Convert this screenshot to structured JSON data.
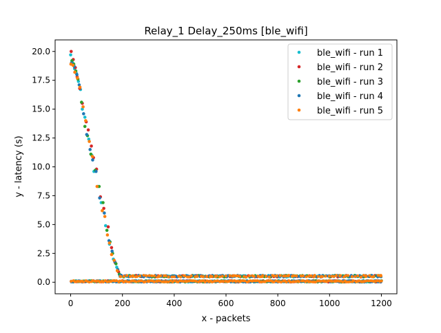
{
  "chart_data": {
    "type": "scatter",
    "title": "Relay_1 Delay_250ms [ble_wifi]",
    "xlabel": "x - packets",
    "ylabel": "y - latency (s)",
    "xlim": [
      -60,
      1260
    ],
    "ylim": [
      -1.0,
      21.0
    ],
    "xticks": [
      0,
      200,
      400,
      600,
      800,
      1000,
      1200
    ],
    "yticks": [
      0.0,
      2.5,
      5.0,
      7.5,
      10.0,
      12.5,
      15.0,
      17.5,
      20.0
    ],
    "xtick_labels": [
      "0",
      "200",
      "400",
      "600",
      "800",
      "1000",
      "1200"
    ],
    "ytick_labels": [
      "0.0",
      "2.5",
      "5.0",
      "7.5",
      "10.0",
      "12.5",
      "15.0",
      "17.5",
      "20.0"
    ],
    "grid": false,
    "legend_position": "top-right",
    "series": [
      {
        "name": "ble_wifi - run 1",
        "color": "#17becf",
        "points": [
          [
            0,
            19.7
          ],
          [
            8,
            19.0
          ],
          [
            15,
            18.5
          ],
          [
            22,
            18.1
          ],
          [
            30,
            17.4
          ],
          [
            38,
            16.7
          ],
          [
            45,
            15.0
          ],
          [
            55,
            14.3
          ],
          [
            70,
            12.4
          ],
          [
            82,
            11.0
          ],
          [
            90,
            9.6
          ],
          [
            105,
            8.3
          ],
          [
            118,
            6.9
          ],
          [
            135,
            4.9
          ],
          [
            150,
            3.3
          ],
          [
            165,
            2.0
          ],
          [
            178,
            1.3
          ],
          [
            190,
            0.6
          ],
          [
            250,
            0.55
          ],
          [
            350,
            0.5
          ],
          [
            450,
            0.55
          ],
          [
            550,
            0.5
          ],
          [
            650,
            0.5
          ],
          [
            750,
            0.55
          ],
          [
            850,
            0.5
          ],
          [
            950,
            0.5
          ],
          [
            1050,
            0.55
          ],
          [
            1150,
            0.5
          ],
          [
            1195,
            0.5
          ]
        ]
      },
      {
        "name": "ble_wifi - run 2",
        "color": "#d62728",
        "points": [
          [
            2,
            20.0
          ],
          [
            10,
            19.3
          ],
          [
            18,
            18.6
          ],
          [
            25,
            17.8
          ],
          [
            35,
            16.8
          ],
          [
            45,
            15.5
          ],
          [
            60,
            13.9
          ],
          [
            68,
            13.2
          ],
          [
            80,
            11.8
          ],
          [
            88,
            10.8
          ],
          [
            100,
            9.8
          ],
          [
            115,
            7.4
          ],
          [
            128,
            6.4
          ],
          [
            145,
            4.8
          ],
          [
            158,
            3.0
          ],
          [
            172,
            1.7
          ],
          [
            185,
            0.9
          ],
          [
            230,
            0.55
          ],
          [
            330,
            0.5
          ],
          [
            430,
            0.55
          ],
          [
            530,
            0.5
          ],
          [
            630,
            0.55
          ],
          [
            730,
            0.5
          ],
          [
            830,
            0.55
          ],
          [
            930,
            0.5
          ],
          [
            1030,
            0.55
          ],
          [
            1130,
            0.5
          ],
          [
            1190,
            0.55
          ]
        ]
      },
      {
        "name": "ble_wifi - run 3",
        "color": "#2ca02c",
        "points": [
          [
            5,
            19.2
          ],
          [
            12,
            18.9
          ],
          [
            20,
            18.3
          ],
          [
            28,
            17.6
          ],
          [
            42,
            15.6
          ],
          [
            55,
            13.5
          ],
          [
            65,
            12.7
          ],
          [
            78,
            11.1
          ],
          [
            95,
            9.7
          ],
          [
            110,
            8.3
          ],
          [
            125,
            6.9
          ],
          [
            140,
            4.5
          ],
          [
            152,
            3.5
          ],
          [
            162,
            2.5
          ],
          [
            175,
            1.6
          ],
          [
            188,
            0.7
          ],
          [
            270,
            0.55
          ],
          [
            370,
            0.5
          ],
          [
            470,
            0.55
          ],
          [
            570,
            0.5
          ],
          [
            670,
            0.55
          ],
          [
            770,
            0.5
          ],
          [
            870,
            0.55
          ],
          [
            970,
            0.5
          ],
          [
            1070,
            0.55
          ],
          [
            1170,
            0.5
          ]
        ]
      },
      {
        "name": "ble_wifi - run 4",
        "color": "#1f77b4",
        "points": [
          [
            3,
            19.0
          ],
          [
            14,
            18.7
          ],
          [
            24,
            18.0
          ],
          [
            33,
            17.1
          ],
          [
            50,
            14.6
          ],
          [
            62,
            12.8
          ],
          [
            75,
            11.5
          ],
          [
            85,
            10.6
          ],
          [
            98,
            9.6
          ],
          [
            112,
            7.3
          ],
          [
            130,
            6.0
          ],
          [
            148,
            3.6
          ],
          [
            160,
            2.7
          ],
          [
            170,
            1.8
          ],
          [
            182,
            1.1
          ],
          [
            195,
            0.6
          ],
          [
            300,
            0.5
          ],
          [
            400,
            0.55
          ],
          [
            500,
            0.5
          ],
          [
            600,
            0.55
          ],
          [
            700,
            0.5
          ],
          [
            800,
            0.55
          ],
          [
            900,
            0.5
          ],
          [
            1000,
            0.55
          ],
          [
            1100,
            0.5
          ],
          [
            1185,
            0.55
          ]
        ]
      },
      {
        "name": "ble_wifi - run 5",
        "color": "#ff7f0e",
        "points": [
          [
            1,
            18.9
          ],
          [
            9,
            18.8
          ],
          [
            16,
            18.2
          ],
          [
            26,
            17.7
          ],
          [
            36,
            16.9
          ],
          [
            48,
            15.2
          ],
          [
            58,
            14.0
          ],
          [
            72,
            12.2
          ],
          [
            84,
            10.9
          ],
          [
            102,
            8.3
          ],
          [
            122,
            6.2
          ],
          [
            132,
            5.7
          ],
          [
            142,
            4.1
          ],
          [
            150,
            3.4
          ],
          [
            158,
            2.4
          ],
          [
            168,
            1.9
          ],
          [
            180,
            1.0
          ],
          [
            192,
            0.5
          ],
          [
            240,
            0.55
          ],
          [
            340,
            0.5
          ],
          [
            440,
            0.55
          ],
          [
            540,
            0.5
          ],
          [
            640,
            0.55
          ],
          [
            740,
            0.5
          ],
          [
            840,
            0.55
          ],
          [
            940,
            0.5
          ],
          [
            1040,
            0.55
          ],
          [
            1140,
            0.5
          ],
          [
            1198,
            0.55
          ]
        ]
      }
    ]
  }
}
